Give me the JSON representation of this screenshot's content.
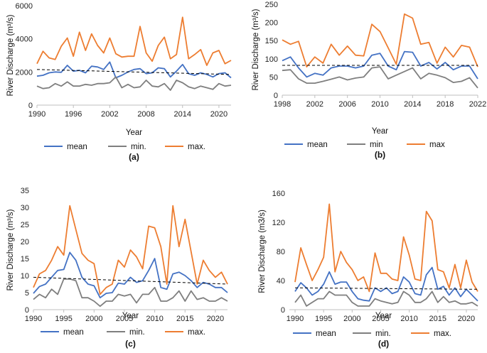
{
  "colors": {
    "mean": "#4472c4",
    "min": "#7f7f7f",
    "max": "#ed7d31",
    "trend": "#000000",
    "axis": "#bfbfbf"
  },
  "chart_data": [
    {
      "type": "line",
      "panel_label": "(a)",
      "xlabel": "Year",
      "ylabel": "River Discharge (m³/s)",
      "xlim": [
        1990,
        2022
      ],
      "ylim": [
        0,
        6000
      ],
      "xticks": [
        1990,
        1996,
        2002,
        2008,
        2014,
        2020
      ],
      "yticks": [
        0,
        2000,
        4000,
        6000
      ],
      "x": [
        1990,
        1991,
        1992,
        1993,
        1994,
        1995,
        1996,
        1997,
        1998,
        1999,
        2000,
        2001,
        2002,
        2003,
        2004,
        2005,
        2006,
        2007,
        2008,
        2009,
        2010,
        2011,
        2012,
        2013,
        2014,
        2015,
        2016,
        2017,
        2018,
        2019,
        2020,
        2021,
        2022
      ],
      "series": [
        {
          "name": "mean",
          "color_key": "mean",
          "values": [
            1750,
            1800,
            1950,
            2000,
            1980,
            2400,
            2050,
            2100,
            1950,
            2350,
            2300,
            2150,
            2600,
            1650,
            1800,
            2000,
            2150,
            2200,
            1900,
            1950,
            2250,
            2200,
            1700,
            2050,
            2450,
            1900,
            1800,
            1950,
            1850,
            1700,
            1900,
            1950,
            1650
          ]
        },
        {
          "name": "min.",
          "color_key": "min",
          "values": [
            1150,
            1000,
            1050,
            1300,
            1150,
            1400,
            1150,
            1150,
            1250,
            1200,
            1300,
            1300,
            1350,
            1700,
            1050,
            1250,
            1050,
            1100,
            1500,
            1150,
            1100,
            1300,
            900,
            1500,
            1350,
            1100,
            1000,
            1150,
            1050,
            950,
            1300,
            1150,
            1200
          ]
        },
        {
          "name": "max.",
          "color_key": "max",
          "values": [
            2500,
            3250,
            2850,
            2750,
            3550,
            4050,
            2950,
            4400,
            3300,
            4300,
            3600,
            3150,
            4050,
            3100,
            2900,
            2950,
            2950,
            4750,
            3150,
            2650,
            3600,
            4100,
            2800,
            3050,
            5300,
            2800,
            3050,
            3350,
            2400,
            3150,
            3300,
            2500,
            2700
          ]
        }
      ],
      "trend": {
        "start": 2150,
        "end": 1850
      },
      "legend": [
        "mean",
        "min.",
        "max."
      ]
    },
    {
      "type": "line",
      "panel_label": "(b)",
      "xlabel": "Year",
      "ylabel": "River Discharge (m³/s)",
      "xlim": [
        1998,
        2022
      ],
      "ylim": [
        0,
        250
      ],
      "xticks": [
        1998,
        2002,
        2006,
        2010,
        2014,
        2018,
        2022
      ],
      "yticks": [
        0,
        50,
        100,
        150,
        200,
        250
      ],
      "x": [
        1998,
        1999,
        2000,
        2001,
        2002,
        2003,
        2004,
        2005,
        2006,
        2007,
        2008,
        2009,
        2010,
        2011,
        2012,
        2013,
        2014,
        2015,
        2016,
        2017,
        2018,
        2019,
        2020,
        2021,
        2022
      ],
      "series": [
        {
          "name": "mean",
          "color_key": "mean",
          "values": [
            95,
            105,
            75,
            50,
            60,
            55,
            75,
            80,
            80,
            75,
            80,
            110,
            115,
            80,
            70,
            120,
            118,
            80,
            90,
            72,
            90,
            70,
            80,
            80,
            45
          ]
        },
        {
          "name": "min",
          "color_key": "min",
          "values": [
            68,
            70,
            45,
            33,
            33,
            38,
            44,
            50,
            42,
            47,
            50,
            75,
            78,
            45,
            55,
            65,
            75,
            45,
            60,
            55,
            48,
            35,
            38,
            48,
            20
          ]
        },
        {
          "name": "max",
          "color_key": "max",
          "values": [
            152,
            140,
            148,
            78,
            105,
            88,
            140,
            110,
            135,
            110,
            108,
            195,
            175,
            130,
            85,
            223,
            212,
            140,
            145,
            88,
            132,
            105,
            137,
            132,
            78
          ]
        }
      ],
      "trend": {
        "start": 82,
        "end": 82
      },
      "legend": [
        "mean",
        "min",
        "max"
      ]
    },
    {
      "type": "line",
      "panel_label": "(c)",
      "xlabel": "Year",
      "ylabel": "River Discharge (m³/s)",
      "xlim": [
        1990,
        2022
      ],
      "ylim": [
        0,
        35
      ],
      "xticks": [
        1990,
        1995,
        2000,
        2005,
        2010,
        2015,
        2020
      ],
      "yticks": [
        0,
        5,
        10,
        15,
        20,
        25,
        30,
        35
      ],
      "x": [
        1990,
        1991,
        1992,
        1993,
        1994,
        1995,
        1996,
        1997,
        1998,
        1999,
        2000,
        2001,
        2002,
        2003,
        2004,
        2005,
        2006,
        2007,
        2008,
        2009,
        2010,
        2011,
        2012,
        2013,
        2014,
        2015,
        2016,
        2017,
        2018,
        2019,
        2020,
        2021,
        2022
      ],
      "series": [
        {
          "name": "mean",
          "color_key": "mean",
          "values": [
            4.8,
            6.8,
            7.5,
            9.5,
            11.5,
            11.8,
            16.8,
            14.5,
            9.5,
            7.5,
            7.0,
            3.5,
            4.8,
            5.0,
            7.8,
            7.5,
            9.5,
            8.0,
            8.5,
            11.5,
            15.0,
            6.5,
            6.0,
            10.5,
            11.0,
            10.0,
            8.5,
            6.5,
            8.0,
            7.5,
            6.5,
            6.5,
            5.0
          ]
        },
        {
          "name": "min.",
          "color_key": "min",
          "values": [
            3.0,
            4.5,
            3.5,
            6.0,
            4.5,
            9.0,
            9.0,
            8.5,
            3.5,
            3.5,
            2.5,
            1.0,
            2.5,
            2.5,
            4.5,
            4.0,
            4.5,
            2.0,
            4.5,
            4.5,
            6.5,
            2.5,
            2.5,
            3.5,
            5.5,
            2.5,
            5.5,
            3.0,
            3.5,
            2.5,
            2.5,
            3.5,
            2.5
          ]
        },
        {
          "name": "max.",
          "color_key": "max",
          "values": [
            6.5,
            10.5,
            11.5,
            14.5,
            18.5,
            16.0,
            30.5,
            23.5,
            16.5,
            14.5,
            13.5,
            4.5,
            6.5,
            7.5,
            14.5,
            12.5,
            17.5,
            15.5,
            12.0,
            24.5,
            24.0,
            18.5,
            7.5,
            30.5,
            18.5,
            26.5,
            17.0,
            7.5,
            14.5,
            11.5,
            9.5,
            11.0,
            7.5
          ]
        }
      ],
      "trend": {
        "start": 9.5,
        "end": 7.5
      },
      "legend": [
        "mean",
        "min.",
        "max."
      ]
    },
    {
      "type": "line",
      "panel_label": "(d)",
      "xlabel": "Year",
      "ylabel": "River Discharge (m3/s)",
      "xlim": [
        1989,
        2022
      ],
      "ylim": [
        0,
        160
      ],
      "xticks": [
        1990,
        1995,
        2000,
        2005,
        2010,
        2015,
        2020
      ],
      "yticks": [
        0,
        40,
        80,
        120,
        160
      ],
      "x": [
        1990,
        1991,
        1992,
        1993,
        1994,
        1995,
        1996,
        1997,
        1998,
        1999,
        2000,
        2001,
        2002,
        2003,
        2004,
        2005,
        2006,
        2007,
        2008,
        2009,
        2010,
        2011,
        2012,
        2013,
        2014,
        2015,
        2016,
        2017,
        2018,
        2019,
        2020,
        2021,
        2022
      ],
      "series": [
        {
          "name": "mean",
          "color_key": "mean",
          "values": [
            25,
            37,
            30,
            20,
            25,
            35,
            52,
            35,
            38,
            38,
            25,
            15,
            13,
            12,
            30,
            25,
            30,
            22,
            25,
            45,
            38,
            22,
            20,
            48,
            58,
            28,
            32,
            20,
            30,
            18,
            28,
            20,
            12
          ]
        },
        {
          "name": "min.",
          "color_key": "min",
          "values": [
            10,
            20,
            5,
            10,
            15,
            15,
            25,
            20,
            20,
            20,
            10,
            5,
            5,
            5,
            15,
            12,
            10,
            8,
            10,
            25,
            20,
            10,
            10,
            15,
            25,
            10,
            18,
            10,
            12,
            8,
            8,
            10,
            5
          ]
        },
        {
          "name": "max.",
          "color_key": "max",
          "values": [
            38,
            85,
            62,
            40,
            55,
            72,
            145,
            52,
            80,
            65,
            55,
            40,
            45,
            25,
            78,
            50,
            50,
            42,
            40,
            100,
            75,
            42,
            40,
            135,
            122,
            55,
            52,
            30,
            62,
            30,
            68,
            38,
            25
          ]
        }
      ],
      "trend": {
        "start": 30,
        "end": 28
      },
      "legend": [
        "mean",
        "min.",
        "max."
      ]
    }
  ]
}
